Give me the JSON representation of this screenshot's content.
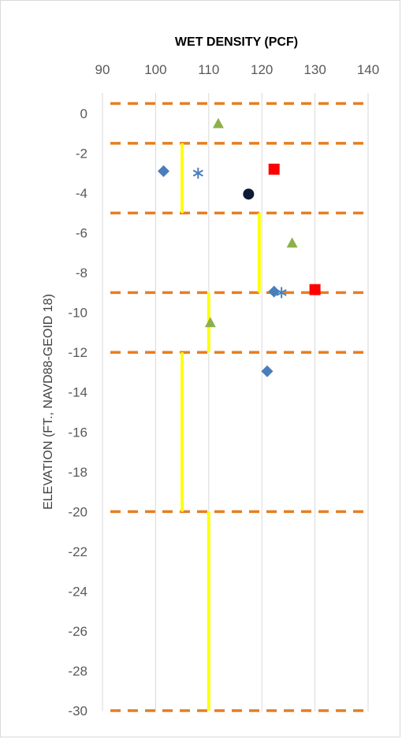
{
  "chart_data": {
    "type": "scatter",
    "title": "",
    "xlabel": "WET DENSITY (PCF)",
    "ylabel": "ELEVATION (FT., NAVD88-GEOID 18)",
    "x_axis_position": "top",
    "xlim": [
      90,
      140
    ],
    "ylim": [
      -30,
      1
    ],
    "x_ticks": [
      "90",
      "100",
      "110",
      "120",
      "130",
      "140"
    ],
    "y_ticks": [
      "0",
      "-2",
      "-4",
      "-6",
      "-8",
      "-10",
      "-12",
      "-14",
      "-16",
      "-18",
      "-20",
      "-22",
      "-24",
      "-26",
      "-28",
      "-30"
    ],
    "grid": "vertical",
    "legend": "none",
    "series": [
      {
        "marker": "diamond",
        "color": "#4a7ebb",
        "points": [
          [
            101.5,
            -2.9
          ],
          [
            122.3,
            -8.95
          ],
          [
            121,
            -12.95
          ]
        ]
      },
      {
        "marker": "square",
        "color": "#ff0000",
        "points": [
          [
            122.3,
            -2.8
          ],
          [
            130,
            -8.85
          ]
        ]
      },
      {
        "marker": "triangle",
        "color": "#8db04a",
        "points": [
          [
            111.8,
            -0.5
          ],
          [
            125.7,
            -6.5
          ],
          [
            110.3,
            -10.5
          ]
        ]
      },
      {
        "marker": "asterisk",
        "color": "#4a7ebb",
        "points": [
          [
            108,
            -3
          ],
          [
            123.7,
            -9
          ]
        ]
      },
      {
        "marker": "circle",
        "color": "#0d1b36",
        "points": [
          [
            117.5,
            -4.05
          ]
        ]
      }
    ],
    "layer_boundaries": {
      "color": "#e67e22",
      "style": "dashed",
      "elevations": [
        0.5,
        -1.5,
        -5,
        -9,
        -12,
        -20,
        -30
      ]
    },
    "average_density_segments": {
      "color": "#ffff00",
      "segments": [
        {
          "x": 105,
          "y_top": -1.5,
          "y_bottom": -5
        },
        {
          "x": 119.5,
          "y_top": -5,
          "y_bottom": -9
        },
        {
          "x": 110,
          "y_top": -9,
          "y_bottom": -12
        },
        {
          "x": 105,
          "y_top": -12,
          "y_bottom": -20
        },
        {
          "x": 110,
          "y_top": -20,
          "y_bottom": -30
        }
      ]
    }
  }
}
